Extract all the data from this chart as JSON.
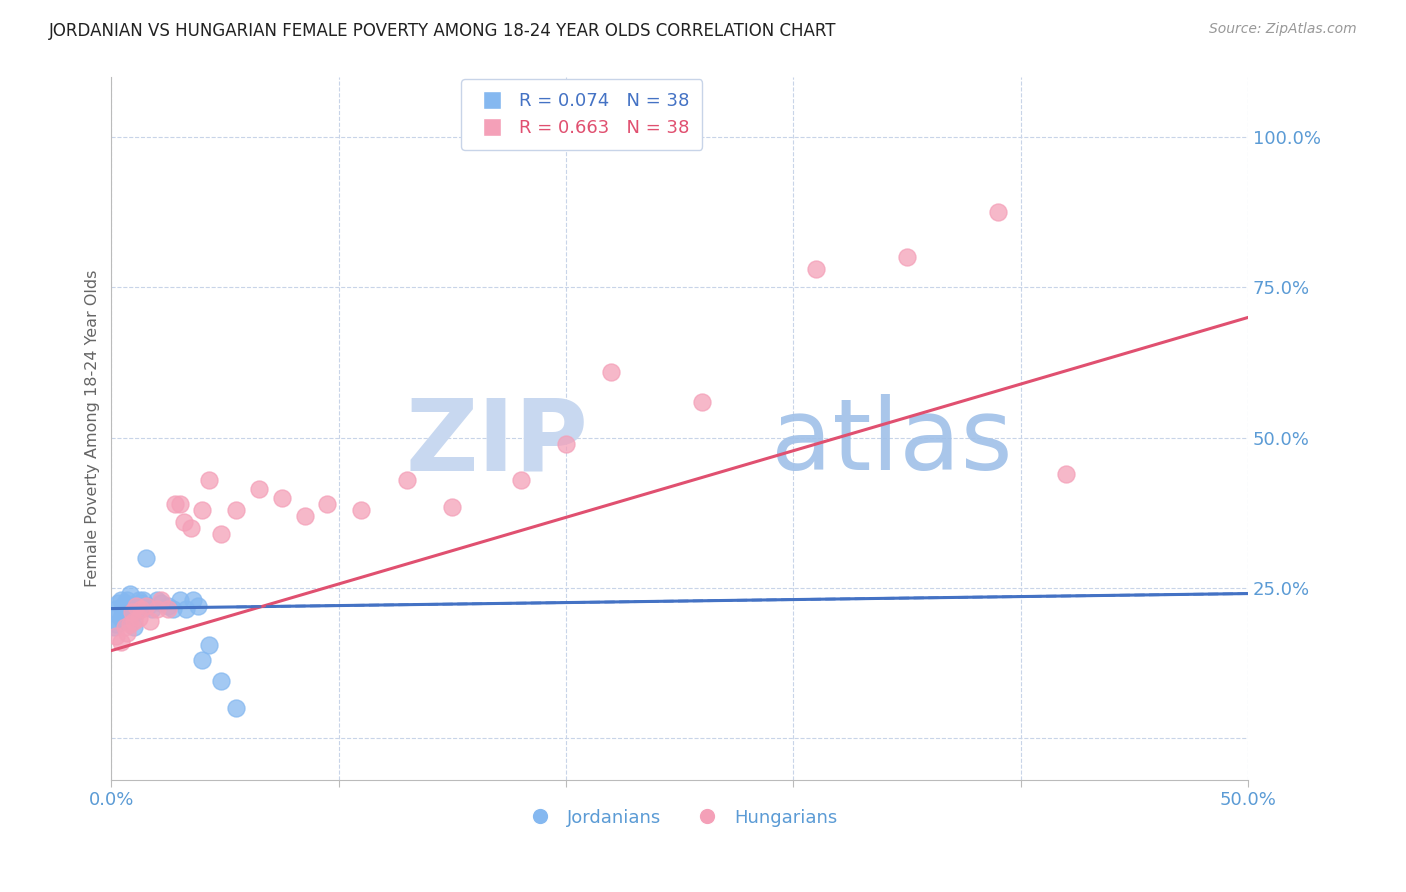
{
  "title": "JORDANIAN VS HUNGARIAN FEMALE POVERTY AMONG 18-24 YEAR OLDS CORRELATION CHART",
  "source": "Source: ZipAtlas.com",
  "xlabel_jordanians": "Jordanians",
  "xlabel_hungarians": "Hungarians",
  "ylabel": "Female Poverty Among 18-24 Year Olds",
  "r_jordanians": 0.074,
  "n_jordanians": 38,
  "r_hungarians": 0.663,
  "n_hungarians": 38,
  "xlim": [
    0.0,
    0.5
  ],
  "ylim": [
    -0.07,
    1.1
  ],
  "xticks": [
    0.0,
    0.1,
    0.2,
    0.3,
    0.4,
    0.5
  ],
  "yticks": [
    0.0,
    0.25,
    0.5,
    0.75,
    1.0
  ],
  "ytick_labels": [
    "",
    "25.0%",
    "50.0%",
    "75.0%",
    "100.0%"
  ],
  "xtick_labels": [
    "0.0%",
    "",
    "",
    "",
    "",
    "50.0%"
  ],
  "color_jordanian": "#85b8f0",
  "color_hungarian": "#f4a0b8",
  "color_trend_jordanian": "#4472c4",
  "color_trend_hungarian": "#e05070",
  "color_axis": "#5b9bd5",
  "color_grid": "#c8d4e8",
  "watermark_zip_color": "#c8d8f0",
  "watermark_atlas_color": "#a0c0e8",
  "jordanian_x": [
    0.001,
    0.002,
    0.002,
    0.003,
    0.003,
    0.004,
    0.004,
    0.005,
    0.005,
    0.005,
    0.006,
    0.006,
    0.007,
    0.007,
    0.008,
    0.008,
    0.009,
    0.01,
    0.01,
    0.011,
    0.012,
    0.013,
    0.014,
    0.015,
    0.016,
    0.018,
    0.02,
    0.022,
    0.025,
    0.027,
    0.03,
    0.033,
    0.036,
    0.038,
    0.04,
    0.043,
    0.048,
    0.055
  ],
  "jordanian_y": [
    0.185,
    0.19,
    0.215,
    0.205,
    0.225,
    0.2,
    0.23,
    0.21,
    0.22,
    0.195,
    0.215,
    0.225,
    0.22,
    0.23,
    0.21,
    0.24,
    0.215,
    0.185,
    0.22,
    0.21,
    0.23,
    0.225,
    0.23,
    0.3,
    0.22,
    0.215,
    0.23,
    0.225,
    0.22,
    0.215,
    0.23,
    0.215,
    0.23,
    0.22,
    0.13,
    0.155,
    0.095,
    0.05
  ],
  "hungarian_x": [
    0.002,
    0.004,
    0.006,
    0.007,
    0.008,
    0.009,
    0.01,
    0.011,
    0.012,
    0.013,
    0.015,
    0.017,
    0.02,
    0.022,
    0.025,
    0.028,
    0.03,
    0.032,
    0.035,
    0.04,
    0.043,
    0.048,
    0.055,
    0.065,
    0.075,
    0.085,
    0.095,
    0.11,
    0.13,
    0.15,
    0.18,
    0.2,
    0.22,
    0.26,
    0.31,
    0.35,
    0.39,
    0.42
  ],
  "hungarian_y": [
    0.17,
    0.16,
    0.185,
    0.175,
    0.19,
    0.21,
    0.195,
    0.22,
    0.2,
    0.215,
    0.22,
    0.195,
    0.215,
    0.23,
    0.215,
    0.39,
    0.39,
    0.36,
    0.35,
    0.38,
    0.43,
    0.34,
    0.38,
    0.415,
    0.4,
    0.37,
    0.39,
    0.38,
    0.43,
    0.385,
    0.43,
    0.49,
    0.61,
    0.56,
    0.78,
    0.8,
    0.875,
    0.44
  ],
  "trend_j_x0": 0.0,
  "trend_j_x1": 0.5,
  "trend_j_y0": 0.215,
  "trend_j_y1": 0.24,
  "trend_h_x0": 0.0,
  "trend_h_x1": 0.5,
  "trend_h_y0": 0.145,
  "trend_h_y1": 0.7
}
